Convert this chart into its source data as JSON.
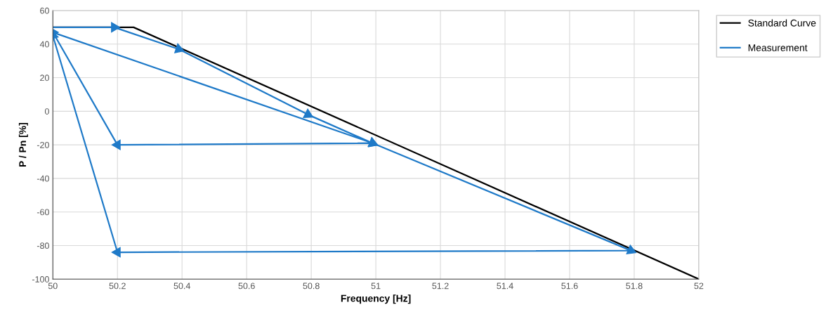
{
  "chart_data": {
    "type": "line",
    "xlabel": "Frequency [Hz]",
    "ylabel": "P / Pn [%]",
    "xlim": [
      50,
      52
    ],
    "xticks": [
      50,
      50.2,
      50.4,
      50.6,
      50.8,
      51,
      51.2,
      51.4,
      51.6,
      51.8,
      52
    ],
    "ylim": [
      -100,
      60
    ],
    "yticks": [
      -100,
      -80,
      -60,
      -40,
      -20,
      0,
      20,
      40,
      60
    ],
    "grid": true,
    "legend": "right",
    "series": [
      {
        "name": "Standard Curve",
        "color": "#000000",
        "marker": "none",
        "x": [
          50,
          50.25,
          52
        ],
        "values": [
          50,
          50,
          -100
        ]
      },
      {
        "name": "Measurement",
        "color": "#1f7ac8",
        "marker": "triangle",
        "x": [
          50,
          50.19,
          50.39,
          50.79,
          50.99,
          50.2,
          50,
          50.99,
          51.79,
          50.2,
          50
        ],
        "values": [
          50,
          50,
          37,
          -2,
          -19,
          -20,
          47,
          -19,
          -83,
          -84,
          45
        ]
      }
    ]
  }
}
